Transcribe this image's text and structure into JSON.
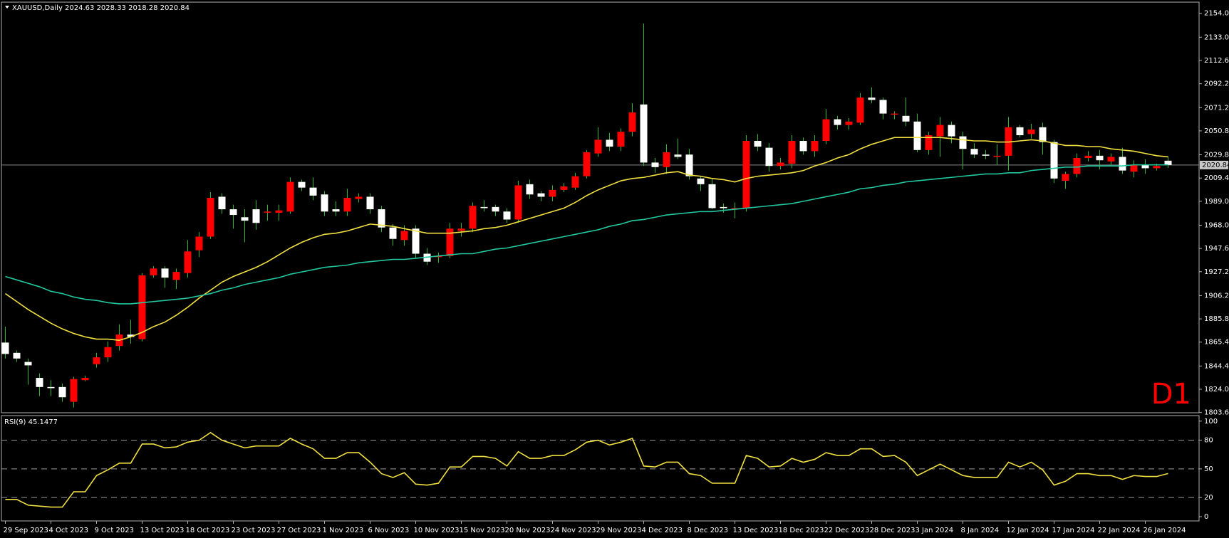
{
  "chart_data": [
    {
      "type": "candlestick",
      "title": "XAUUSD,Daily  2024.63 2028.33 2018.28 2020.84",
      "watermark": "D1",
      "watermark_color": "#ff0000",
      "categories": [
        "29 Sep 2023",
        null,
        null,
        null,
        "4 Oct 2023",
        null,
        null,
        null,
        "9 Oct 2023",
        null,
        null,
        null,
        "13 Oct 2023",
        null,
        null,
        null,
        "18 Oct 2023",
        null,
        null,
        null,
        "23 Oct 2023",
        null,
        null,
        null,
        "27 Oct 2023",
        null,
        null,
        null,
        "1 Nov 2023",
        null,
        null,
        null,
        "6 Nov 2023",
        null,
        null,
        null,
        "10 Nov 2023",
        null,
        null,
        null,
        "15 Nov 2023",
        null,
        null,
        null,
        "20 Nov 2023",
        null,
        null,
        null,
        "24 Nov 2023",
        null,
        null,
        null,
        "29 Nov 2023",
        null,
        null,
        null,
        "4 Dec 2023",
        null,
        null,
        null,
        "8 Dec 2023",
        null,
        null,
        null,
        "13 Dec 2023",
        null,
        null,
        null,
        "18 Dec 2023",
        null,
        null,
        null,
        "22 Dec 2023",
        null,
        null,
        null,
        "28 Dec 2023",
        null,
        null,
        null,
        "3 Jan 2024",
        null,
        null,
        null,
        "8 Jan 2024",
        null,
        null,
        null,
        "12 Jan 2024",
        null,
        null,
        null,
        "17 Jan 2024",
        null,
        null,
        null,
        "22 Jan 2024",
        null,
        null,
        null,
        "26 Jan 2024",
        null,
        null
      ],
      "open": [
        1865,
        1856,
        1848,
        1834,
        1826,
        1826,
        1813,
        1832,
        1846,
        1852,
        1862,
        1872,
        1868,
        1924,
        1930,
        1920,
        1926,
        1946,
        1958,
        1993,
        1982,
        1975,
        1982,
        1979,
        1979,
        1980,
        2006,
        2001,
        1995,
        1982,
        1980,
        1991,
        1993,
        1982,
        1966,
        1955,
        1965,
        1943,
        1940,
        1941,
        1963,
        1965,
        1984,
        1984,
        1980,
        1973,
        2004,
        1996,
        1993,
        1999,
        2001,
        2011,
        2031,
        2043,
        2037,
        2050,
        2074,
        2023,
        2019,
        2030,
        2030,
        2009,
        2004,
        1984,
        1982,
        1983,
        2042,
        2036,
        2020,
        2022,
        2042,
        2033,
        2042,
        2061,
        2056,
        2058,
        2080,
        2078,
        2065,
        2064,
        2059,
        2034,
        2046,
        2056,
        2046,
        2035,
        2030,
        2028,
        2029,
        2054,
        2048,
        2054,
        2041,
        2007,
        2013,
        2027,
        2029,
        2024,
        2028,
        2015,
        2021,
        2018,
        2024.63
      ],
      "high": [
        1879,
        1858,
        1851,
        1838,
        1832,
        1829,
        1835,
        1836,
        1856,
        1866,
        1881,
        1885,
        1926,
        1932,
        1932,
        1930,
        1955,
        1962,
        1997,
        1996,
        1986,
        1982,
        1990,
        1986,
        1986,
        2010,
        2008,
        2010,
        1998,
        1989,
        2000,
        1996,
        1996,
        1985,
        1969,
        1968,
        1968,
        1948,
        1944,
        1970,
        1970,
        1988,
        1990,
        1986,
        1983,
        2007,
        2008,
        1998,
        2003,
        2005,
        2014,
        2034,
        2054,
        2049,
        2053,
        2075,
        2145,
        2027,
        2039,
        2044,
        2035,
        2011,
        2009,
        1987,
        1988,
        2047,
        2048,
        2040,
        2027,
        2047,
        2045,
        2047,
        2070,
        2064,
        2062,
        2084,
        2089,
        2080,
        2068,
        2080,
        2066,
        2050,
        2063,
        2059,
        2050,
        2040,
        2034,
        2039,
        2063,
        2056,
        2057,
        2058,
        2043,
        2015,
        2031,
        2033,
        2034,
        2031,
        2036,
        2025,
        2026,
        2022,
        2028.33
      ],
      "low": [
        1851,
        1848,
        1828,
        1818,
        1818,
        1813,
        1808,
        1831,
        1843,
        1848,
        1858,
        1864,
        1866,
        1922,
        1913,
        1912,
        1922,
        1940,
        1956,
        1978,
        1965,
        1953,
        1964,
        1972,
        1972,
        1978,
        1998,
        1990,
        1976,
        1976,
        1976,
        1988,
        1978,
        1962,
        1950,
        1950,
        1939,
        1933,
        1935,
        1939,
        1958,
        1962,
        1980,
        1976,
        1970,
        1970,
        1991,
        1989,
        1989,
        1997,
        1999,
        2009,
        2028,
        2033,
        2033,
        2046,
        2020,
        2014,
        2013,
        2026,
        2008,
        1998,
        1982,
        1979,
        1974,
        1980,
        2033,
        2015,
        2017,
        2018,
        2030,
        2028,
        2039,
        2052,
        2052,
        2056,
        2075,
        2061,
        2061,
        2055,
        2032,
        2030,
        2028,
        2040,
        2017,
        2027,
        2026,
        2021,
        2016,
        2045,
        2044,
        2030,
        2005,
        2000,
        2010,
        2024,
        2017,
        2020,
        2013,
        2010,
        2013,
        2016,
        2018.28
      ],
      "close": [
        1855,
        1851,
        1845,
        1826,
        1825,
        1817,
        1833,
        1834,
        1852,
        1861,
        1872,
        1870,
        1924,
        1930,
        1922,
        1927,
        1945,
        1958,
        1992,
        1982,
        1977,
        1972,
        1970,
        1980,
        1981,
        2006,
        2001,
        1994,
        1980,
        1980,
        1992,
        1993,
        1982,
        1966,
        1956,
        1963,
        1943,
        1936,
        1941,
        1965,
        1965,
        1985,
        1983,
        1980,
        1973,
        2003,
        1995,
        1993,
        1999,
        2002,
        2011,
        2032,
        2043,
        2037,
        2050,
        2067,
        2023,
        2019,
        2032,
        2028,
        2011,
        2004,
        1983,
        1983,
        1983,
        2042,
        2037,
        2020,
        2023,
        2042,
        2033,
        2042,
        2061,
        2056,
        2059,
        2080,
        2078,
        2066,
        2066,
        2059,
        2034,
        2047,
        2056,
        2046,
        2035,
        2030,
        2029,
        2029,
        2054,
        2047,
        2052,
        2041,
        2009,
        2013,
        2027,
        2029,
        2025,
        2028,
        2016,
        2021,
        2018,
        2020,
        2020.84
      ],
      "up_color": "#ff0000",
      "down_color": "#ffffff",
      "wick_color": "#2db82d",
      "series": [
        {
          "color": "#f0e040",
          "values": [
            1908,
            1901,
            1894,
            1888,
            1882,
            1877,
            1873,
            1870,
            1868,
            1868,
            1867,
            1870,
            1874,
            1879,
            1883,
            1889,
            1896,
            1904,
            1911,
            1918,
            1923,
            1927,
            1931,
            1936,
            1942,
            1948,
            1953,
            1957,
            1960,
            1961,
            1963,
            1966,
            1969,
            1968,
            1967,
            1965,
            1963,
            1961,
            1961,
            1961,
            1962,
            1963,
            1965,
            1966,
            1968,
            1971,
            1974,
            1977,
            1980,
            1983,
            1988,
            1994,
            1999,
            2003,
            2007,
            2009,
            2010,
            2012,
            2014,
            2015,
            2012,
            2011,
            2009,
            2008,
            2006,
            2009,
            2011,
            2012,
            2013,
            2014,
            2016,
            2020,
            2023,
            2027,
            2030,
            2035,
            2039,
            2042,
            2045,
            2045,
            2045,
            2045,
            2045,
            2044,
            2043,
            2042,
            2042,
            2041,
            2041,
            2042,
            2043,
            2042,
            2040,
            2038,
            2038,
            2037,
            2037,
            2035,
            2034,
            2033,
            2031,
            2029,
            2028
          ]
        },
        {
          "color": "#20c8a0",
          "values": [
            1923,
            1920,
            1917,
            1914,
            1910,
            1908,
            1905,
            1903,
            1902,
            1900,
            1899,
            1899,
            1900,
            1901,
            1902,
            1903,
            1904,
            1906,
            1908,
            1911,
            1913,
            1916,
            1918,
            1920,
            1922,
            1925,
            1927,
            1929,
            1931,
            1932,
            1933,
            1935,
            1936,
            1937,
            1938,
            1938,
            1939,
            1940,
            1941,
            1942,
            1943,
            1943,
            1945,
            1947,
            1948,
            1950,
            1952,
            1954,
            1956,
            1958,
            1960,
            1962,
            1964,
            1967,
            1969,
            1972,
            1973,
            1975,
            1977,
            1978,
            1979,
            1980,
            1980,
            1981,
            1982,
            1983,
            1984,
            1985,
            1986,
            1987,
            1989,
            1991,
            1993,
            1995,
            1997,
            2000,
            2001,
            2003,
            2004,
            2006,
            2007,
            2008,
            2009,
            2010,
            2011,
            2012,
            2013,
            2013,
            2014,
            2014,
            2016,
            2017,
            2018,
            2019,
            2019,
            2020,
            2020,
            2020,
            2020,
            2021,
            2021,
            2021,
            2021
          ]
        }
      ],
      "current_price": 2020.84,
      "ylim": [
        1803.4,
        2163.8
      ],
      "yticks": [
        {
          "value": 2154,
          "label": "2154.00"
        },
        {
          "value": 2133,
          "label": "2133.00"
        },
        {
          "value": 2112.6,
          "label": "2112.60"
        },
        {
          "value": 2092.2,
          "label": "2092.20"
        },
        {
          "value": 2071.2,
          "label": "2071.20"
        },
        {
          "value": 2050.8,
          "label": "2050.80"
        },
        {
          "value": 2029.8,
          "label": "2029.80"
        },
        {
          "value": 2009.4,
          "label": "2009.40"
        },
        {
          "value": 1989,
          "label": "1989.00"
        },
        {
          "value": 1968,
          "label": "1968.00"
        },
        {
          "value": 1947.6,
          "label": "1947.60"
        },
        {
          "value": 1927.2,
          "label": "1927.20"
        },
        {
          "value": 1906.2,
          "label": "1906.20"
        },
        {
          "value": 1885.8,
          "label": "1885.80"
        },
        {
          "value": 1865.4,
          "label": "1865.40"
        },
        {
          "value": 1844.4,
          "label": "1844.40"
        },
        {
          "value": 1824,
          "label": "1824.00"
        },
        {
          "value": 1803.6,
          "label": "1803.60"
        }
      ]
    },
    {
      "type": "line",
      "title": "RSI(9) 45.1477",
      "color": "#f0e040",
      "values": [
        18,
        18,
        12,
        11,
        10,
        10,
        26,
        26,
        43,
        49,
        56,
        56,
        76,
        76,
        72,
        73,
        78,
        80,
        88,
        80,
        76,
        72,
        74,
        74,
        74,
        82,
        76,
        71,
        61,
        61,
        67,
        67,
        57,
        45,
        41,
        46,
        34,
        33,
        35,
        52,
        52,
        63,
        63,
        61,
        53,
        68,
        61,
        61,
        64,
        64,
        70,
        78,
        80,
        75,
        78,
        82,
        53,
        52,
        57,
        57,
        45,
        43,
        35,
        35,
        35,
        64,
        61,
        52,
        53,
        61,
        57,
        60,
        67,
        64,
        64,
        71,
        71,
        63,
        64,
        57,
        43,
        49,
        55,
        49,
        43,
        41,
        41,
        41,
        57,
        52,
        57,
        49,
        33,
        37,
        45,
        45,
        43,
        43,
        39,
        43,
        42,
        42,
        45.1477
      ],
      "ylim": [
        -4.5,
        105.8
      ],
      "yticks": [
        0,
        20,
        50,
        80,
        100
      ],
      "levels": [
        20,
        50,
        80
      ]
    }
  ]
}
